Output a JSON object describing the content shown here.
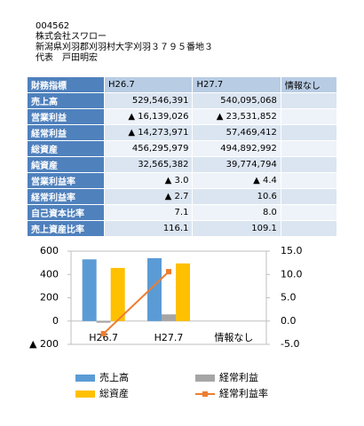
{
  "company": {
    "code": "004562",
    "name": "株式会社スワロー",
    "address": "新潟県刈羽郡刈羽村大字刈羽３７９５番地３",
    "representative": "代表　戸田明宏"
  },
  "table": {
    "header": [
      "財務指標",
      "H26.7",
      "H27.7",
      "情報なし"
    ],
    "rows": [
      [
        "売上高",
        "529,546,391",
        "540,095,068",
        ""
      ],
      [
        "営業利益",
        "▲ 16,139,026",
        "▲ 23,531,852",
        ""
      ],
      [
        "経常利益",
        "▲ 14,273,971",
        "57,469,412",
        ""
      ],
      [
        "総資産",
        "456,295,979",
        "494,892,992",
        ""
      ],
      [
        "純資産",
        "32,565,382",
        "39,774,794",
        ""
      ],
      [
        "営業利益率",
        "▲ 3.0",
        "▲ 4.4",
        ""
      ],
      [
        "経常利益率",
        "▲ 2.7",
        "10.6",
        ""
      ],
      [
        "自己資本比率",
        "7.1",
        "8.0",
        ""
      ],
      [
        "売上資産比率",
        "116.1",
        "109.1",
        ""
      ]
    ]
  },
  "chart_data": {
    "type": "bar",
    "categories": [
      "H26.7",
      "H27.7",
      "情報なし"
    ],
    "series": [
      {
        "name": "売上高",
        "color": "#5b9bd5",
        "values": [
          529.546391,
          540.095068,
          null
        ]
      },
      {
        "name": "経常利益",
        "color": "#a5a5a5",
        "values": [
          -14.273971,
          57.469412,
          null
        ]
      },
      {
        "name": "総資産",
        "color": "#ffc000",
        "values": [
          456.295979,
          494.892992,
          null
        ]
      },
      {
        "name": "経常利益率",
        "type": "line",
        "axis": "y2",
        "color": "#ed7d31",
        "values": [
          -2.7,
          10.6,
          null
        ]
      }
    ],
    "ylim": [
      -200,
      600
    ],
    "yticks": [
      600,
      400,
      200,
      0,
      {
        "value": -200,
        "label": "▲ 200"
      }
    ],
    "y2lim": [
      -5,
      15
    ],
    "y2ticks": [
      {
        "value": 15,
        "label": "15.0"
      },
      {
        "value": 10,
        "label": "10.0"
      },
      {
        "value": 5,
        "label": "5.0"
      },
      {
        "value": 0,
        "label": "0.0"
      },
      {
        "value": -5,
        "label": "-5.0"
      }
    ]
  }
}
